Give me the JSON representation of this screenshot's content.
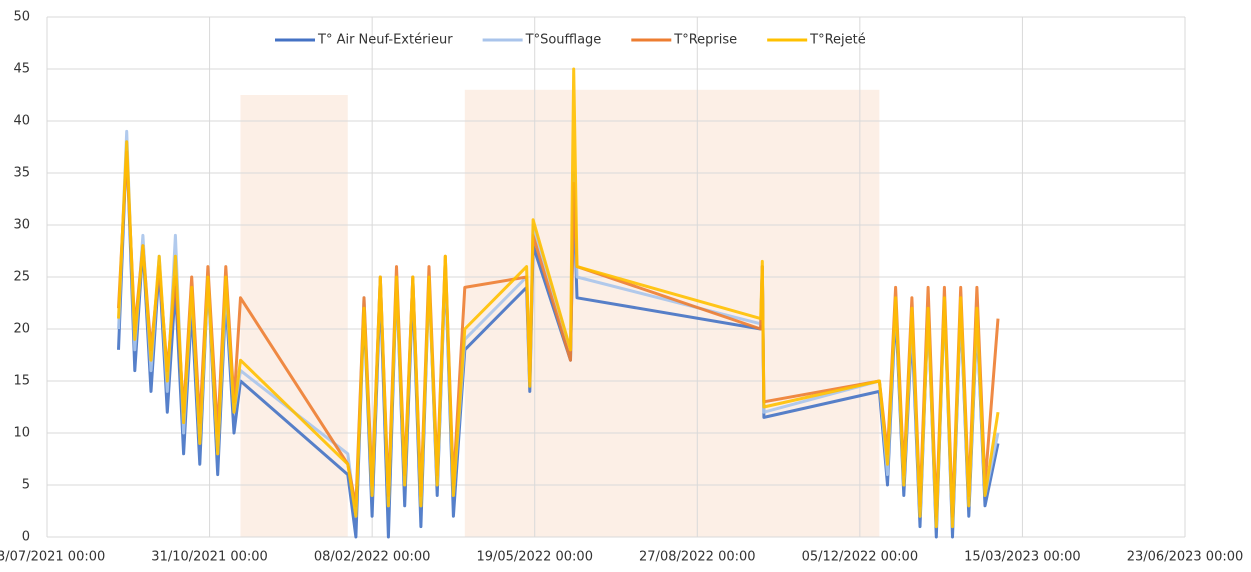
{
  "chart_data": {
    "type": "line",
    "x": [
      "2021-09-05",
      "2021-09-10",
      "2021-09-15",
      "2021-09-20",
      "2021-09-25",
      "2021-09-30",
      "2021-10-05",
      "2021-10-10",
      "2021-10-15",
      "2021-10-20",
      "2021-10-25",
      "2021-10-30",
      "2021-11-05",
      "2021-11-10",
      "2021-11-15",
      "2021-11-19",
      "2022-01-24",
      "2022-01-29",
      "2022-02-03",
      "2022-02-08",
      "2022-02-13",
      "2022-02-18",
      "2022-02-23",
      "2022-02-28",
      "2022-03-05",
      "2022-03-10",
      "2022-03-15",
      "2022-03-20",
      "2022-03-25",
      "2022-03-30",
      "2022-04-06",
      "2022-05-14",
      "2022-05-16",
      "2022-05-18",
      "2022-06-10",
      "2022-06-12",
      "2022-06-14",
      "2022-10-05",
      "2022-10-06",
      "2022-10-07",
      "2022-12-17",
      "2022-12-22",
      "2022-12-27",
      "2023-01-01",
      "2023-01-06",
      "2023-01-11",
      "2023-01-16",
      "2023-01-21",
      "2023-01-26",
      "2023-01-31",
      "2023-02-05",
      "2023-02-10",
      "2023-02-15",
      "2023-02-20",
      "2023-02-28"
    ],
    "series": [
      {
        "name": "T° Air Neuf-Extérieur",
        "color": "#4472c4",
        "values": [
          18,
          38,
          16,
          28,
          14,
          26,
          12,
          24,
          8,
          22,
          7,
          25,
          6,
          23,
          10,
          15,
          6,
          0,
          22,
          2,
          24,
          0,
          25,
          3,
          24,
          1,
          25,
          4,
          26,
          2,
          18,
          24,
          14,
          28,
          17,
          33,
          23,
          20,
          26,
          11.5,
          14,
          5,
          22,
          4,
          20,
          1,
          22,
          0,
          23,
          0,
          22,
          2,
          21,
          3,
          9
        ]
      },
      {
        "name": "T°Soufflage",
        "color": "#a9c4eb",
        "values": [
          20,
          39,
          18,
          29,
          16,
          27,
          14,
          29,
          10,
          24,
          9,
          25,
          8,
          24,
          12,
          16,
          8,
          2,
          23,
          4,
          25,
          3,
          25,
          5,
          25,
          3,
          25,
          5,
          26,
          4,
          19,
          25,
          15,
          30,
          18,
          35,
          25,
          20.5,
          26,
          12,
          15,
          6,
          23,
          5,
          21,
          2,
          22,
          1,
          23,
          1,
          22,
          3,
          21,
          4,
          10
        ]
      },
      {
        "name": "T°Reprise",
        "color": "#ed7d31",
        "values": [
          22,
          37,
          20,
          28,
          18,
          26,
          16,
          25,
          12,
          25,
          11,
          26,
          10,
          26,
          13,
          23,
          7,
          3,
          23,
          5,
          25,
          4,
          26,
          6,
          25,
          4,
          26,
          6,
          27,
          5,
          24,
          25,
          15,
          29,
          17,
          34,
          26,
          20,
          26,
          13,
          15,
          8,
          24,
          6,
          23,
          3,
          24,
          2,
          24,
          2,
          24,
          4,
          24,
          5,
          21
        ]
      },
      {
        "name": "T°Rejeté",
        "color": "#ffc000",
        "values": [
          21,
          38,
          19,
          28,
          17,
          27,
          15,
          27,
          11,
          24,
          9,
          25,
          8,
          25,
          12,
          17,
          7,
          2,
          22,
          4,
          25,
          3,
          25,
          5,
          25,
          3,
          25,
          5,
          27,
          4,
          20,
          26,
          14.5,
          30.5,
          18,
          45,
          26,
          21,
          26.5,
          12.5,
          15,
          7,
          23,
          5,
          22,
          2,
          22,
          1,
          23,
          1,
          23,
          3,
          22,
          4,
          12
        ]
      }
    ],
    "shaded_regions": [
      {
        "x": [
          "2021-11-19",
          "2022-01-24"
        ],
        "y": 42.5
      },
      {
        "x": [
          "2022-04-06",
          "2022-12-17"
        ],
        "y": 43
      }
    ],
    "shade_color": "#fcefe6",
    "xlim": [
      "2021-07-23",
      "2023-06-23"
    ],
    "xticks": [
      {
        "value": "2021-07-23",
        "label": "23/07/2021 00:00"
      },
      {
        "value": "2021-10-31",
        "label": "31/10/2021 00:00"
      },
      {
        "value": "2022-02-08",
        "label": "08/02/2022 00:00"
      },
      {
        "value": "2022-05-19",
        "label": "19/05/2022 00:00"
      },
      {
        "value": "2022-08-27",
        "label": "27/08/2022 00:00"
      },
      {
        "value": "2022-12-05",
        "label": "05/12/2022 00:00"
      },
      {
        "value": "2023-03-15",
        "label": "15/03/2023 00:00"
      },
      {
        "value": "2023-06-23",
        "label": "23/06/2023 00:00"
      }
    ],
    "ylim": [
      0,
      50
    ],
    "yticks": [
      0,
      5,
      10,
      15,
      20,
      25,
      30,
      35,
      40,
      45,
      50
    ],
    "grid": true,
    "legend": "top"
  }
}
